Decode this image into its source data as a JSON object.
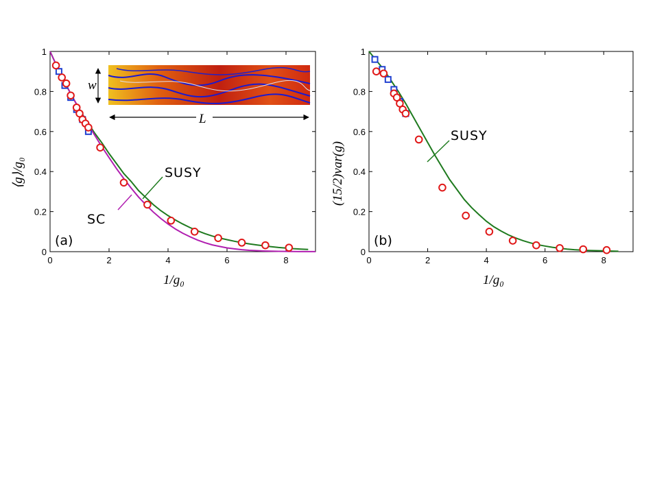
{
  "colors": {
    "susy": "#1e7a1e",
    "sc": "#b01eb0",
    "circles": "#e01818",
    "squares": "#1f3fd0",
    "axis": "#000000"
  },
  "chart_data": [
    {
      "type": "line",
      "panel_label": "(a)",
      "xlabel": "1/g₀",
      "ylabel": "⟨g⟩/g₀",
      "xlim": [
        0,
        9
      ],
      "ylim": [
        0,
        1
      ],
      "xticks": [
        "0",
        "2",
        "4",
        "6",
        "8"
      ],
      "yticks": [
        "0",
        "0.2",
        "0.4",
        "0.6",
        "0.8",
        "1"
      ],
      "grid": false,
      "inset": {
        "width_label": "w",
        "length_label": "L"
      },
      "annotations": [
        {
          "text": "SUSY",
          "series": "SUSY"
        },
        {
          "text": "SC",
          "series": "SC"
        }
      ],
      "series": [
        {
          "name": "SUSY",
          "kind": "curve",
          "x": [
            0,
            0.25,
            0.5,
            0.75,
            1,
            1.25,
            1.5,
            1.75,
            2,
            2.25,
            2.5,
            2.75,
            3,
            3.25,
            3.5,
            3.75,
            4,
            4.25,
            4.5,
            4.75,
            5,
            5.25,
            5.5,
            5.75,
            6,
            6.25,
            6.5,
            6.75,
            7,
            7.25,
            7.5,
            7.75,
            8,
            8.25,
            8.5,
            8.75
          ],
          "y": [
            1,
            0.92,
            0.845,
            0.775,
            0.71,
            0.65,
            0.595,
            0.545,
            0.49,
            0.44,
            0.39,
            0.35,
            0.305,
            0.27,
            0.235,
            0.205,
            0.18,
            0.158,
            0.138,
            0.12,
            0.104,
            0.09,
            0.078,
            0.068,
            0.06,
            0.052,
            0.045,
            0.039,
            0.034,
            0.029,
            0.025,
            0.021,
            0.018,
            0.015,
            0.013,
            0.011
          ]
        },
        {
          "name": "SC",
          "kind": "curve",
          "x": [
            0,
            0.25,
            0.5,
            0.75,
            1,
            1.25,
            1.5,
            1.75,
            2,
            2.25,
            2.5,
            2.75,
            3,
            3.25,
            3.5,
            3.75,
            4,
            4.25,
            4.5,
            4.75,
            5,
            5.25,
            5.5,
            5.75,
            6,
            6.25,
            6.5,
            6.75,
            7,
            7.25,
            7.5,
            7.75,
            8,
            8.25,
            8.5,
            8.75,
            9
          ],
          "y": [
            1,
            0.92,
            0.845,
            0.775,
            0.71,
            0.645,
            0.585,
            0.525,
            0.47,
            0.415,
            0.365,
            0.317,
            0.273,
            0.234,
            0.198,
            0.166,
            0.138,
            0.113,
            0.092,
            0.074,
            0.058,
            0.045,
            0.034,
            0.026,
            0.019,
            0.014,
            0.01,
            0.007,
            0.005,
            0.0035,
            0.0025,
            0.0017,
            0.0012,
            0.0008,
            0.0005,
            0.0003,
            0.0002
          ]
        },
        {
          "name": "circles",
          "kind": "circle",
          "x": [
            0.2,
            0.4,
            0.55,
            0.7,
            0.9,
            1.0,
            1.1,
            1.2,
            1.3,
            1.7,
            2.5,
            3.3,
            4.1,
            4.9,
            5.7,
            6.5,
            7.3,
            8.1
          ],
          "y": [
            0.93,
            0.87,
            0.84,
            0.78,
            0.72,
            0.69,
            0.66,
            0.64,
            0.62,
            0.52,
            0.345,
            0.235,
            0.155,
            0.1,
            0.068,
            0.045,
            0.032,
            0.02
          ]
        },
        {
          "name": "squares",
          "kind": "square",
          "x": [
            0.3,
            0.5,
            0.7,
            0.9,
            1.1,
            1.3
          ],
          "y": [
            0.9,
            0.83,
            0.77,
            0.71,
            0.66,
            0.6
          ]
        }
      ]
    },
    {
      "type": "line",
      "panel_label": "(b)",
      "xlabel": "1/g₀",
      "ylabel": "(15/2)var(g)",
      "xlim": [
        0,
        9
      ],
      "ylim": [
        0,
        1
      ],
      "xticks": [
        "0",
        "2",
        "4",
        "6",
        "8"
      ],
      "yticks": [
        "0",
        "0.2",
        "0.4",
        "0.6",
        "0.8",
        "1"
      ],
      "grid": false,
      "annotations": [
        {
          "text": "SUSY",
          "series": "SUSY"
        }
      ],
      "series": [
        {
          "name": "SUSY",
          "kind": "curve",
          "x": [
            0,
            0.25,
            0.5,
            0.75,
            1,
            1.25,
            1.5,
            1.75,
            2,
            2.25,
            2.5,
            2.75,
            3,
            3.25,
            3.5,
            3.75,
            4,
            4.25,
            4.5,
            4.75,
            5,
            5.25,
            5.5,
            5.75,
            6,
            6.25,
            6.5,
            6.75,
            7,
            7.25,
            7.5,
            7.75,
            8,
            8.25,
            8.5
          ],
          "y": [
            1,
            0.955,
            0.91,
            0.855,
            0.8,
            0.74,
            0.675,
            0.61,
            0.545,
            0.48,
            0.42,
            0.36,
            0.31,
            0.26,
            0.22,
            0.185,
            0.152,
            0.125,
            0.103,
            0.084,
            0.068,
            0.055,
            0.044,
            0.035,
            0.028,
            0.022,
            0.017,
            0.013,
            0.01,
            0.008,
            0.006,
            0.005,
            0.004,
            0.003,
            0.002
          ]
        },
        {
          "name": "circles",
          "kind": "circle",
          "x": [
            0.25,
            0.5,
            0.85,
            0.95,
            1.05,
            1.15,
            1.25,
            1.7,
            2.5,
            3.3,
            4.1,
            4.9,
            5.7,
            6.5,
            7.3,
            8.1
          ],
          "y": [
            0.9,
            0.89,
            0.79,
            0.77,
            0.74,
            0.71,
            0.69,
            0.56,
            0.32,
            0.18,
            0.1,
            0.055,
            0.032,
            0.018,
            0.012,
            0.008
          ]
        },
        {
          "name": "squares",
          "kind": "square",
          "x": [
            0.2,
            0.45,
            0.65,
            0.85,
            1.05,
            1.25
          ],
          "y": [
            0.96,
            0.91,
            0.86,
            0.81,
            0.75,
            0.69
          ]
        }
      ]
    }
  ]
}
